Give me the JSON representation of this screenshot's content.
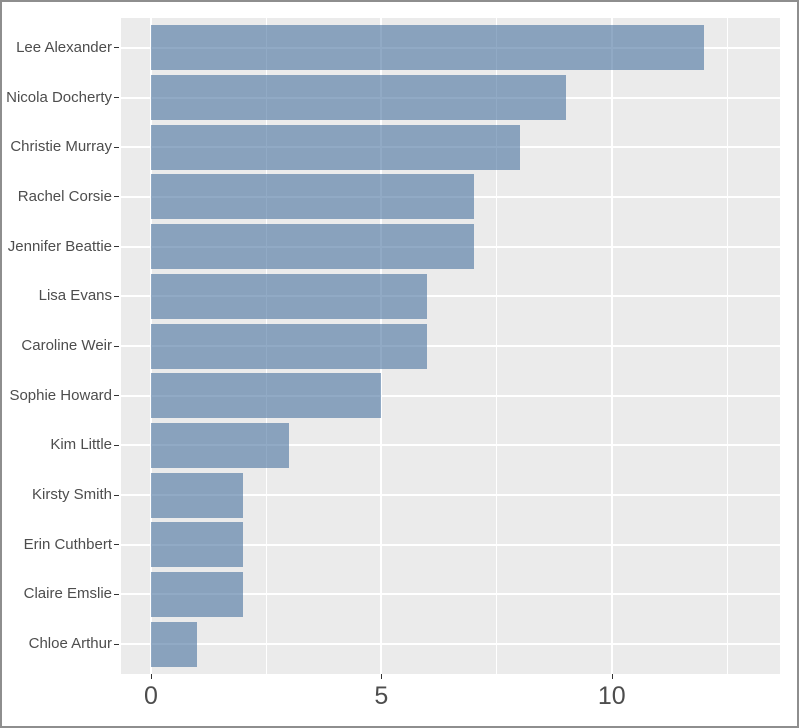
{
  "window": {
    "background": "#FFFFFF",
    "border_color": "#8E8E8E"
  },
  "chart_data": {
    "type": "bar",
    "orientation": "horizontal",
    "title": "",
    "xlabel": "",
    "ylabel": "",
    "categories": [
      "Lee Alexander",
      "Nicola Docherty",
      "Christie Murray",
      "Rachel Corsie",
      "Jennifer Beattie",
      "Lisa Evans",
      "Caroline Weir",
      "Sophie Howard",
      "Kim Little",
      "Kirsty Smith",
      "Erin Cuthbert",
      "Claire Emslie",
      "Chloe Arthur"
    ],
    "values": [
      12,
      9,
      8,
      7,
      7,
      6,
      6,
      5,
      3,
      2,
      2,
      2,
      1
    ],
    "xlim": [
      0,
      13
    ],
    "x_ticks": [
      0,
      5,
      10
    ],
    "x_tick_labels": [
      "0",
      "5",
      "10"
    ],
    "x_minor_ticks": [
      2.5,
      7.5,
      12.5
    ],
    "grid": true,
    "legend": false,
    "panel_bg": "#EBEBEB",
    "grid_color": "#FFFFFF",
    "bar_fill": "rgba(71,113,158,0.6)",
    "bar_fill_over_bg": "#89A2BD",
    "axis_text_color": "#4D4D4D",
    "tick_mark_color": "#333333"
  }
}
